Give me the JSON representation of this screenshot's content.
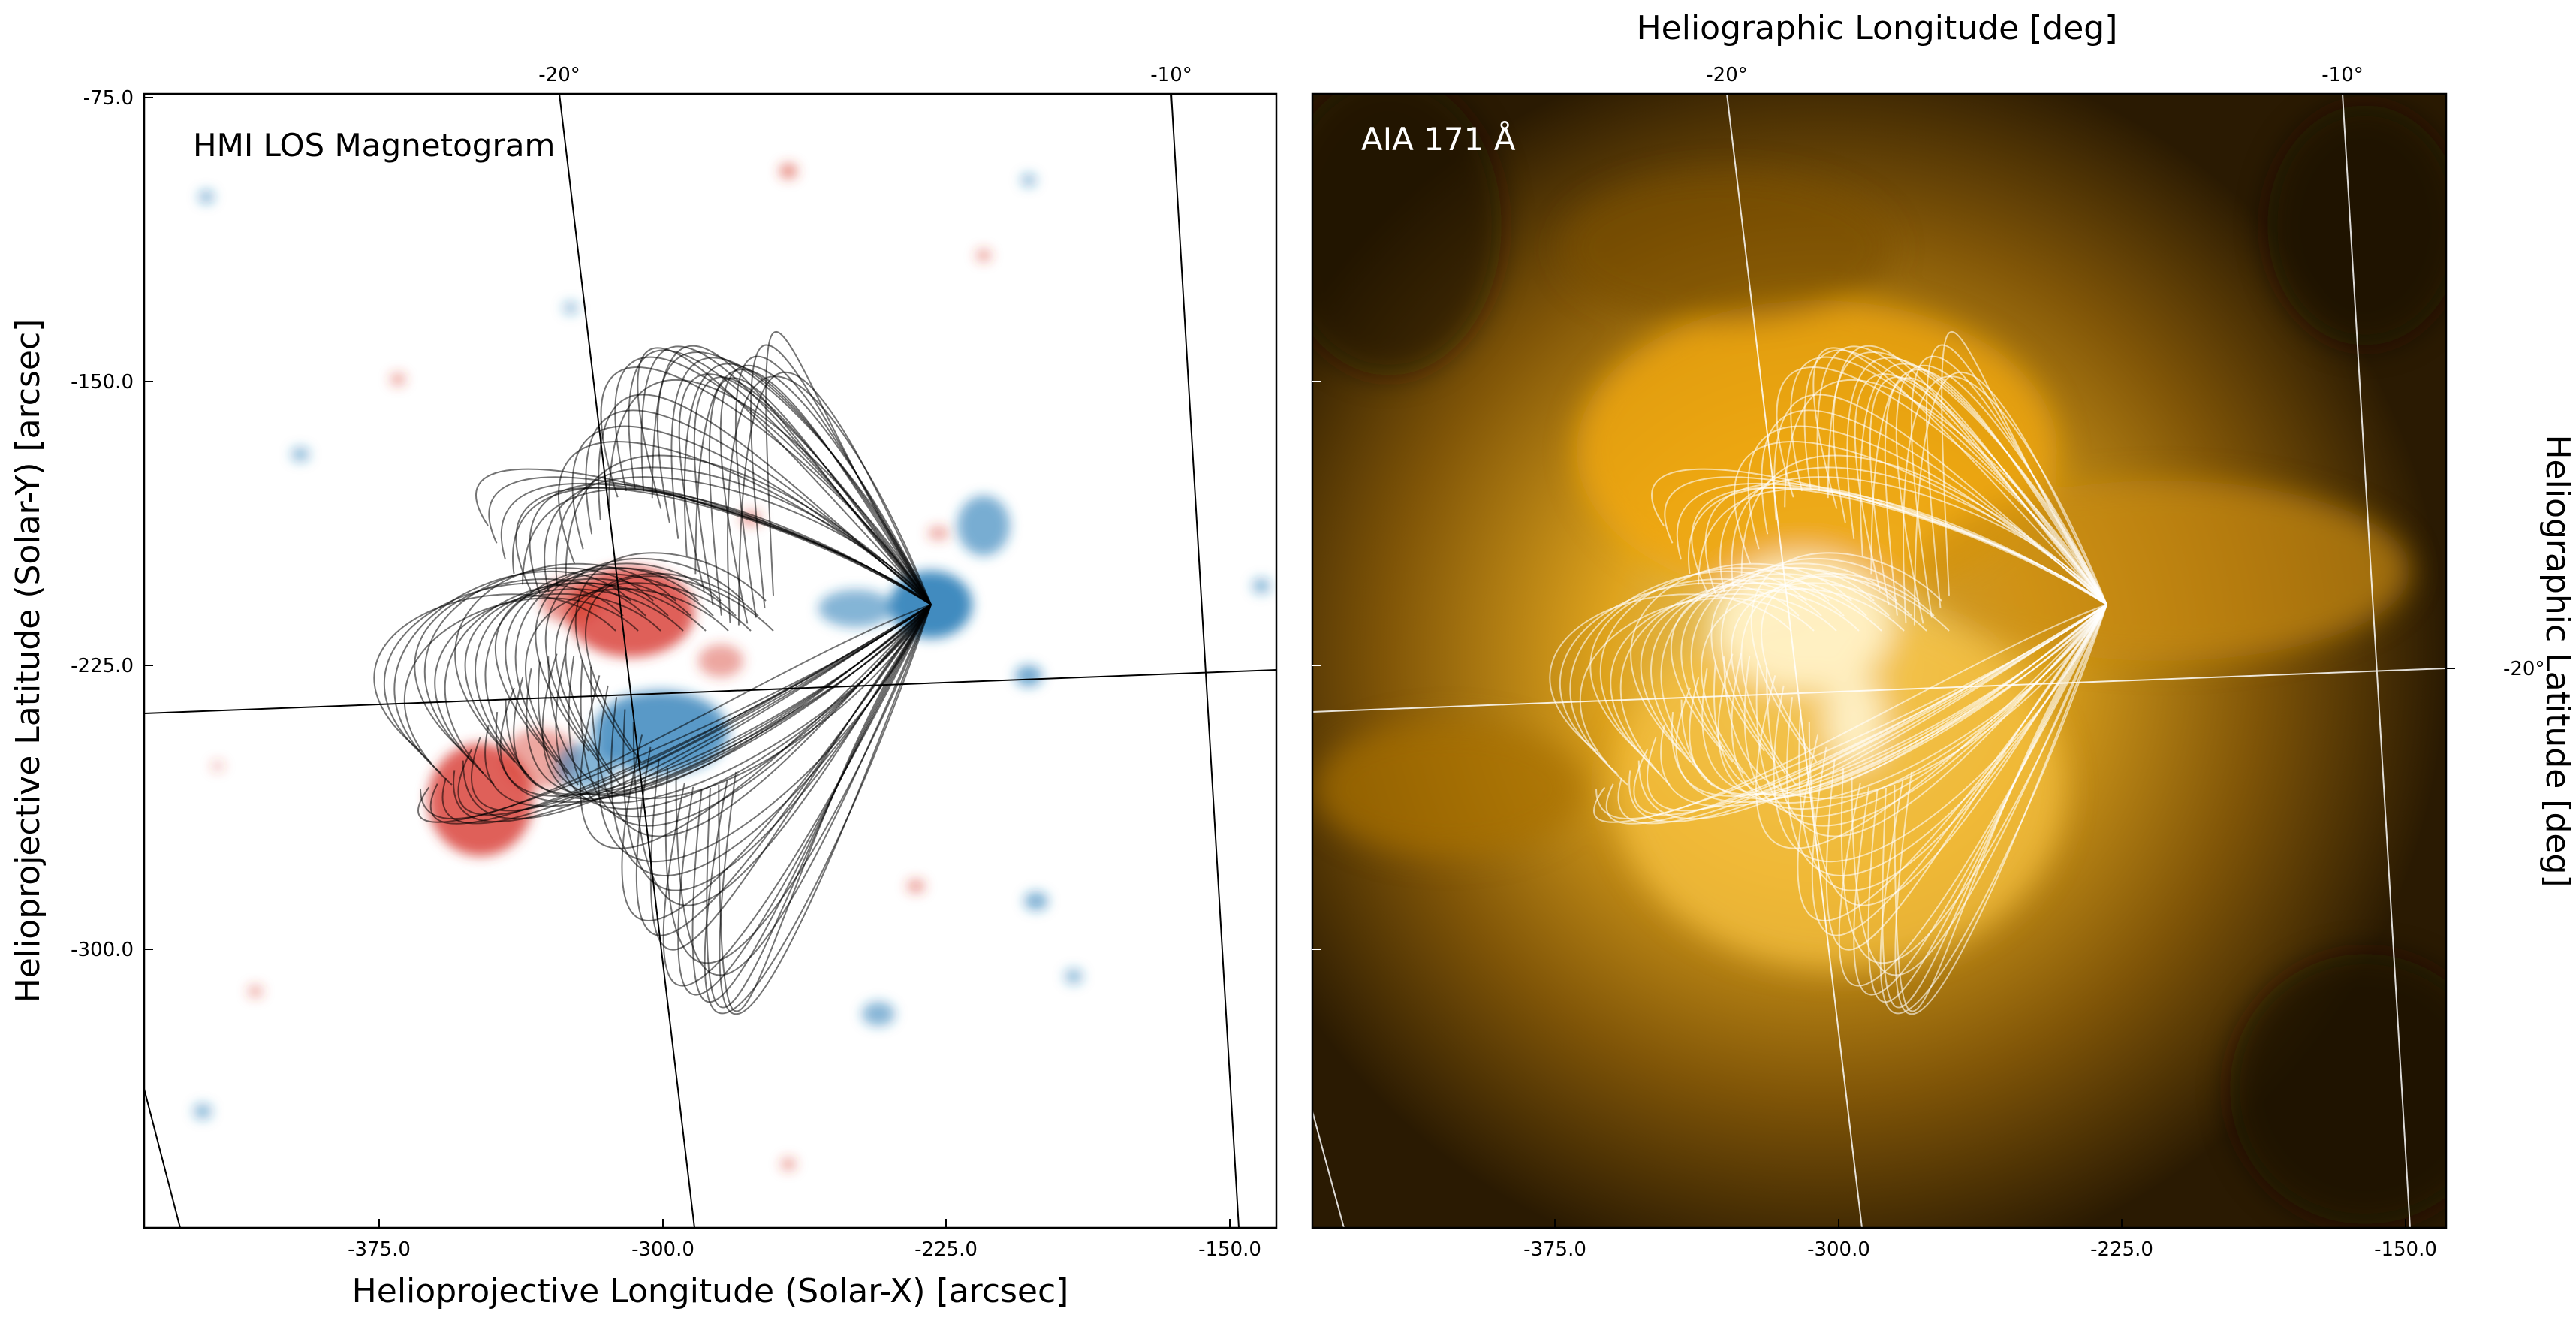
{
  "figure": {
    "top_title": "Heliographic Longitude [deg]",
    "right_axis_title": "Heliographic Latitude [deg]"
  },
  "panels": [
    {
      "id": "hmi",
      "title": "HMI LOS Magnetogram",
      "background": "#ffffff",
      "field_line_color": "#000000",
      "positive_polarity_color": "#d73a2e",
      "negative_polarity_color": "#1f77b4",
      "xlabel": "Helioprojective Longitude (Solar-X) [arcsec]",
      "ylabel": "Helioprojective Latitude (Solar-Y) [arcsec]",
      "x_ticks": [
        "-375.0",
        "-300.0",
        "-225.0",
        "-150.0"
      ],
      "y_ticks": [
        "-75.0",
        "-150.0",
        "-225.0",
        "-300.0"
      ],
      "top_ticks": [
        "-20°",
        "-10°"
      ]
    },
    {
      "id": "aia",
      "title": "AIA 171 Å",
      "background": "#2a1a02",
      "field_line_color": "#ffffff",
      "x_ticks": [
        "-375.0",
        "-300.0",
        "-225.0",
        "-150.0"
      ],
      "top_ticks": [
        "-20°",
        "-10°"
      ],
      "right_ticks": [
        "-20°"
      ]
    }
  ]
}
